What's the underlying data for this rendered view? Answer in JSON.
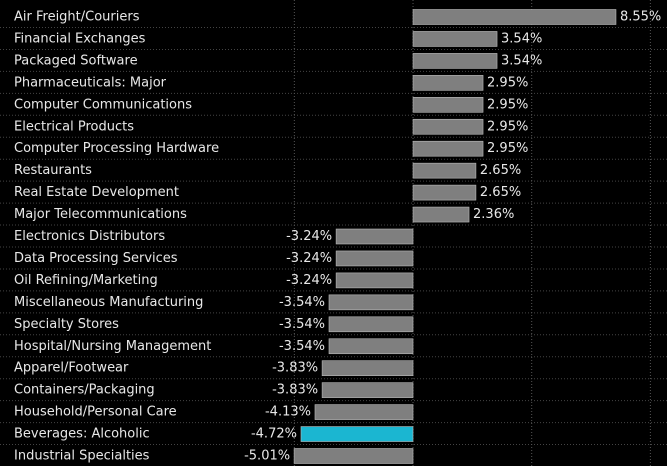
{
  "chart_data": {
    "type": "barh",
    "categories": [
      "Air Freight/Couriers",
      "Financial Exchanges",
      "Packaged Software",
      "Pharmaceuticals: Major",
      "Computer Communications",
      "Electrical Products",
      "Computer Processing Hardware",
      "Restaurants",
      "Real Estate Development",
      "Major Telecommunications",
      "Electronics Distributors",
      "Data Processing Services",
      "Oil Refining/Marketing",
      "Miscellaneous Manufacturing",
      "Specialty Stores",
      "Hospital/Nursing Management",
      "Apparel/Footwear",
      "Containers/Packaging",
      "Household/Personal Care",
      "Beverages: Alcoholic",
      "Industrial Specialties"
    ],
    "values": [
      8.55,
      3.54,
      3.54,
      2.95,
      2.95,
      2.95,
      2.95,
      2.65,
      2.65,
      2.36,
      -3.24,
      -3.24,
      -3.24,
      -3.54,
      -3.54,
      -3.54,
      -3.83,
      -3.83,
      -4.13,
      -4.72,
      -5.01
    ],
    "value_labels": [
      "8.55%",
      "3.54%",
      "3.54%",
      "2.95%",
      "2.95%",
      "2.95%",
      "2.95%",
      "2.65%",
      "2.65%",
      "2.36%",
      "-3.24%",
      "-3.24%",
      "-3.24%",
      "-3.54%",
      "-3.54%",
      "-3.54%",
      "-3.83%",
      "-3.83%",
      "-4.13%",
      "-4.72%",
      "-5.01%"
    ],
    "colors": [
      "#7f7f7f",
      "#7f7f7f",
      "#7f7f7f",
      "#7f7f7f",
      "#7f7f7f",
      "#7f7f7f",
      "#7f7f7f",
      "#7f7f7f",
      "#7f7f7f",
      "#7f7f7f",
      "#7f7f7f",
      "#7f7f7f",
      "#7f7f7f",
      "#7f7f7f",
      "#7f7f7f",
      "#7f7f7f",
      "#7f7f7f",
      "#7f7f7f",
      "#7f7f7f",
      "#1bb6d1",
      "#7f7f7f"
    ],
    "xlim": [
      -17.4,
      10.7
    ],
    "xticks": [
      -5,
      0,
      5,
      10
    ],
    "grid": true
  }
}
